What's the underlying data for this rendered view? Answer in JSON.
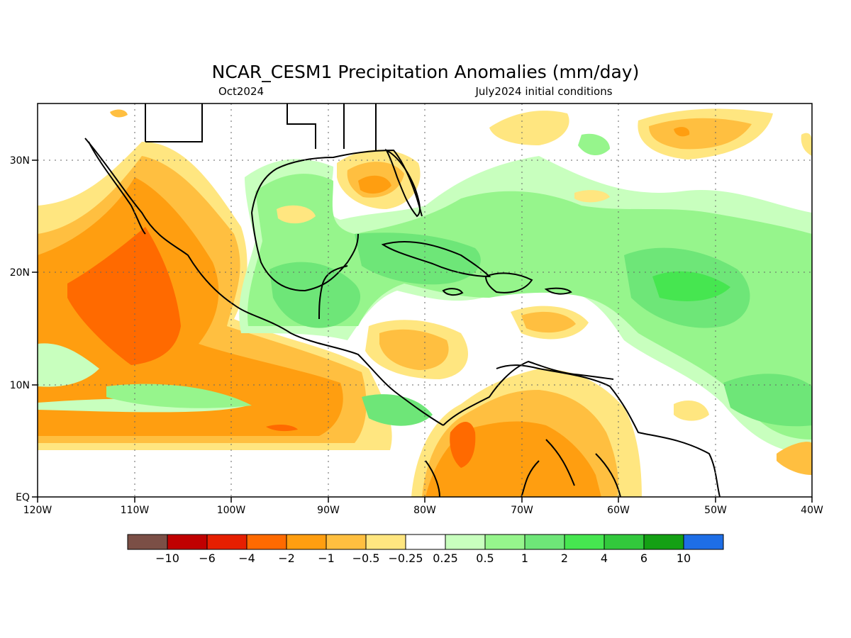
{
  "header": {
    "title": "NCAR_CESM1 Precipitation Anomalies (mm/day)",
    "valid_month": "Oct2024",
    "init": "July2024 initial conditions"
  },
  "map": {
    "x_ticks": [
      "120W",
      "110W",
      "100W",
      "90W",
      "80W",
      "70W",
      "60W",
      "50W",
      "40W"
    ],
    "y_ticks": [
      "EQ",
      "10N",
      "20N",
      "30N"
    ],
    "lon_range": [
      -120,
      -40
    ],
    "lat_range": [
      0,
      35
    ]
  },
  "legend": {
    "colors": [
      "#7b4f46",
      "#c00000",
      "#e61f00",
      "#ff6a00",
      "#ff9e10",
      "#ffbf40",
      "#ffe680",
      "#ffffff",
      "#c8ffbe",
      "#96f58c",
      "#6ee678",
      "#46e650",
      "#32c83c",
      "#14a014",
      "#1e6ee6"
    ],
    "labels": [
      "−10",
      "−6",
      "−4",
      "−2",
      "−1",
      "−0.5",
      "−0.25",
      "0.25",
      "0.5",
      "1",
      "2",
      "4",
      "6",
      "10"
    ]
  }
}
